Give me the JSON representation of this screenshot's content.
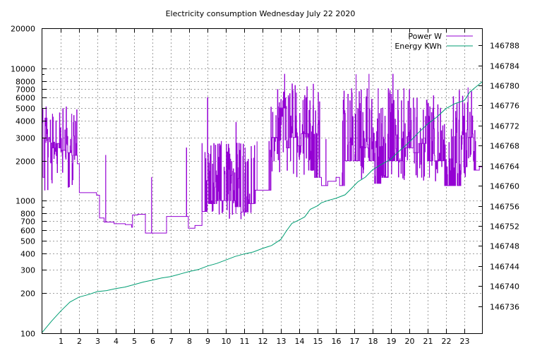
{
  "chart_data": {
    "type": "line",
    "title": "Electricity consumption Wednesday July 22 2020",
    "xlabel": "",
    "ylabel": "",
    "y2label": "",
    "grid": true,
    "legend_position": "top-right",
    "x_axis": {
      "range": [
        0,
        24
      ],
      "tick_values": [
        1,
        2,
        3,
        4,
        5,
        6,
        7,
        8,
        9,
        10,
        11,
        12,
        13,
        14,
        15,
        16,
        17,
        18,
        19,
        20,
        21,
        22,
        23
      ],
      "tick_labels": [
        "1",
        "2",
        "3",
        "4",
        "5",
        "6",
        "7",
        "8",
        "9",
        "10",
        "11",
        "12",
        "13",
        "14",
        "15",
        "16",
        "17",
        "18",
        "19",
        "20",
        "21",
        "22",
        "23"
      ]
    },
    "y_axis": {
      "scale": "log",
      "range": [
        100,
        20000
      ],
      "tick_values": [
        100,
        200,
        300,
        400,
        500,
        600,
        700,
        800,
        1000,
        2000,
        3000,
        4000,
        5000,
        6000,
        7000,
        8000,
        10000,
        20000
      ],
      "tick_labels": [
        "100",
        "200",
        "300",
        "400",
        "500",
        "600",
        "700",
        "800",
        "1000",
        "2000",
        "3000",
        "4000",
        "5000",
        "6000",
        "7000",
        "8000",
        "10000",
        "20000"
      ]
    },
    "y2_axis": {
      "scale": "linear",
      "range": [
        146730.6,
        146791.4
      ],
      "tick_values": [
        146736,
        146740,
        146744,
        146748,
        146752,
        146756,
        146760,
        146764,
        146768,
        146772,
        146776,
        146780,
        146784,
        146788
      ],
      "tick_labels": [
        "146736",
        "146740",
        "146744",
        "146748",
        "146752",
        "146756",
        "146760",
        "146764",
        "146768",
        "146772",
        "146776",
        "146780",
        "146784",
        "146788"
      ]
    },
    "series": [
      {
        "name": "Power W",
        "axis": "y",
        "color": "#9400d3",
        "style": "steps",
        "base": [
          [
            0.0,
            1500
          ],
          [
            0.1,
            4200
          ],
          [
            0.3,
            3000
          ],
          [
            0.5,
            2500
          ],
          [
            0.7,
            2700
          ],
          [
            0.9,
            2500
          ],
          [
            1.0,
            2400
          ],
          [
            1.3,
            2300
          ],
          [
            1.6,
            2200
          ],
          [
            1.9,
            1900
          ],
          [
            2.0,
            1150
          ],
          [
            2.5,
            1150
          ],
          [
            2.95,
            1100
          ],
          [
            3.1,
            740
          ],
          [
            3.35,
            690
          ],
          [
            3.9,
            670
          ],
          [
            4.5,
            660
          ],
          [
            4.85,
            630
          ],
          [
            4.9,
            780
          ],
          [
            5.2,
            790
          ],
          [
            5.6,
            570
          ],
          [
            6.4,
            570
          ],
          [
            6.75,
            760
          ],
          [
            7.5,
            760
          ],
          [
            7.95,
            620
          ],
          [
            8.3,
            650
          ],
          [
            8.7,
            830
          ],
          [
            9.0,
            950
          ],
          [
            9.5,
            1000
          ],
          [
            10.0,
            1000
          ],
          [
            10.5,
            900
          ],
          [
            10.8,
            820
          ],
          [
            11.2,
            950
          ],
          [
            11.6,
            1200
          ],
          [
            12.3,
            1200
          ],
          [
            12.45,
            3000
          ],
          [
            12.8,
            4200
          ],
          [
            12.9,
            5000
          ],
          [
            13.3,
            2500
          ],
          [
            13.5,
            3000
          ],
          [
            13.9,
            2600
          ],
          [
            14.1,
            3200
          ],
          [
            14.5,
            1700
          ],
          [
            14.8,
            1500
          ],
          [
            15.2,
            1300
          ],
          [
            15.55,
            1400
          ],
          [
            16.0,
            1500
          ],
          [
            16.2,
            1300
          ],
          [
            16.5,
            2000
          ],
          [
            16.9,
            2000
          ],
          [
            17.3,
            2500
          ],
          [
            17.8,
            2000
          ],
          [
            18.1,
            1350
          ],
          [
            18.5,
            1500
          ],
          [
            18.9,
            2000
          ],
          [
            19.3,
            2000
          ],
          [
            19.6,
            2500
          ],
          [
            20.2,
            2300
          ],
          [
            20.5,
            2700
          ],
          [
            20.9,
            2000
          ],
          [
            21.4,
            2000
          ],
          [
            21.9,
            1300
          ],
          [
            22.8,
            1800
          ],
          [
            23.2,
            3000
          ],
          [
            23.5,
            1700
          ],
          [
            23.8,
            1800
          ],
          [
            24.0,
            1800
          ]
        ],
        "spike_windows": [
          {
            "x": [
              0.0,
              1.9
            ],
            "low": 1200,
            "high": 5000
          },
          {
            "x": [
              8.85,
              11.6
            ],
            "low": 700,
            "high": 2800
          },
          {
            "x": [
              12.4,
              15.2
            ],
            "low": 1500,
            "high": 8000
          },
          {
            "x": [
              16.3,
              23.6
            ],
            "low": 1400,
            "high": 7000
          }
        ],
        "peaks": [
          [
            0.2,
            5100
          ],
          [
            0.55,
            4500
          ],
          [
            1.3,
            5100
          ],
          [
            1.6,
            4500
          ],
          [
            1.85,
            2700
          ],
          [
            3.45,
            2200
          ],
          [
            5.95,
            1500
          ],
          [
            7.85,
            2500
          ],
          [
            8.7,
            2700
          ],
          [
            9.0,
            6000
          ],
          [
            9.75,
            2800
          ],
          [
            10.55,
            3900
          ],
          [
            11.05,
            2500
          ],
          [
            11.7,
            2800
          ],
          [
            12.35,
            2800
          ],
          [
            13.0,
            5800
          ],
          [
            13.2,
            9000
          ],
          [
            13.4,
            6200
          ],
          [
            13.85,
            3500
          ],
          [
            14.2,
            5700
          ],
          [
            14.75,
            5200
          ],
          [
            15.45,
            2900
          ],
          [
            16.85,
            7000
          ],
          [
            17.1,
            9000
          ],
          [
            17.8,
            9000
          ],
          [
            18.3,
            7000
          ],
          [
            18.55,
            5000
          ],
          [
            18.85,
            7000
          ],
          [
            19.1,
            9000
          ],
          [
            19.7,
            7000
          ],
          [
            20.3,
            5000
          ],
          [
            21.1,
            4300
          ],
          [
            22.7,
            3100
          ],
          [
            23.2,
            7100
          ],
          [
            23.6,
            2800
          ]
        ]
      },
      {
        "name": "Energy KWh",
        "axis": "y2",
        "color": "#009e73",
        "style": "line",
        "points": [
          [
            0.0,
            146730.8
          ],
          [
            0.5,
            146733.0
          ],
          [
            1.0,
            146735.0
          ],
          [
            1.5,
            146736.8
          ],
          [
            2.0,
            146737.8
          ],
          [
            2.5,
            146738.3
          ],
          [
            3.0,
            146738.9
          ],
          [
            3.5,
            146739.1
          ],
          [
            4.0,
            146739.5
          ],
          [
            4.5,
            146739.8
          ],
          [
            5.0,
            146740.3
          ],
          [
            5.5,
            146740.8
          ],
          [
            6.0,
            146741.2
          ],
          [
            6.5,
            146741.6
          ],
          [
            7.0,
            146741.9
          ],
          [
            7.5,
            146742.4
          ],
          [
            8.0,
            146742.9
          ],
          [
            8.5,
            146743.3
          ],
          [
            9.0,
            146744.0
          ],
          [
            9.5,
            146744.5
          ],
          [
            10.0,
            146745.2
          ],
          [
            10.5,
            146745.9
          ],
          [
            11.0,
            146746.4
          ],
          [
            11.5,
            146746.8
          ],
          [
            12.0,
            146747.5
          ],
          [
            12.5,
            146748.1
          ],
          [
            13.0,
            146749.3
          ],
          [
            13.3,
            146751.0
          ],
          [
            13.6,
            146752.5
          ],
          [
            14.0,
            146753.2
          ],
          [
            14.3,
            146753.8
          ],
          [
            14.6,
            146755.3
          ],
          [
            15.0,
            146756.0
          ],
          [
            15.2,
            146756.6
          ],
          [
            15.6,
            146757.1
          ],
          [
            16.0,
            146757.5
          ],
          [
            16.5,
            146758.2
          ],
          [
            16.8,
            146759.3
          ],
          [
            17.2,
            146760.8
          ],
          [
            17.6,
            146761.7
          ],
          [
            18.0,
            146763.2
          ],
          [
            18.5,
            146764.3
          ],
          [
            19.0,
            146765.3
          ],
          [
            19.5,
            146767.1
          ],
          [
            20.0,
            146768.7
          ],
          [
            20.5,
            146770.6
          ],
          [
            21.0,
            146772.3
          ],
          [
            21.5,
            146773.7
          ],
          [
            22.0,
            146775.4
          ],
          [
            22.5,
            146776.4
          ],
          [
            23.0,
            146777.0
          ],
          [
            23.3,
            146778.7
          ],
          [
            23.6,
            146779.6
          ],
          [
            24.0,
            146780.8
          ]
        ]
      }
    ]
  }
}
